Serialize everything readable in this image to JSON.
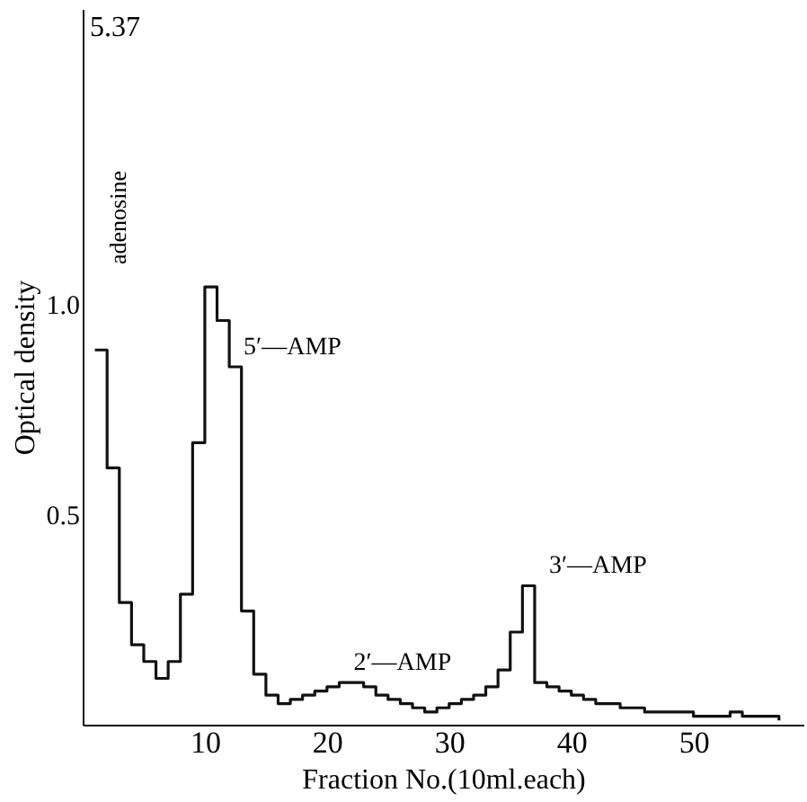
{
  "chart_data": {
    "type": "step",
    "xlabel": "Fraction No.(10ml.each)",
    "ylabel": "Optical density",
    "x": [
      1,
      2,
      3,
      4,
      5,
      6,
      7,
      8,
      9,
      10,
      11,
      12,
      13,
      14,
      15,
      16,
      17,
      18,
      19,
      20,
      21,
      22,
      23,
      24,
      25,
      26,
      27,
      28,
      29,
      30,
      31,
      32,
      33,
      34,
      35,
      36,
      37,
      38,
      39,
      40,
      41,
      42,
      43,
      44,
      45,
      46,
      47,
      48,
      49,
      50,
      51,
      52,
      53,
      54,
      55,
      56,
      57
    ],
    "series": [
      {
        "color": "#111111",
        "values": [
          0.89,
          0.61,
          0.29,
          0.19,
          0.15,
          0.11,
          0.15,
          0.31,
          0.67,
          1.04,
          0.96,
          0.85,
          0.27,
          0.12,
          0.07,
          0.05,
          0.06,
          0.07,
          0.08,
          0.09,
          0.1,
          0.1,
          0.09,
          0.07,
          0.06,
          0.05,
          0.04,
          0.03,
          0.04,
          0.05,
          0.06,
          0.07,
          0.09,
          0.13,
          0.22,
          0.33,
          0.1,
          0.09,
          0.08,
          0.07,
          0.06,
          0.05,
          0.05,
          0.04,
          0.04,
          0.03,
          0.03,
          0.03,
          0.03,
          0.02,
          0.02,
          0.02,
          0.03,
          0.02,
          0.02,
          0.02,
          0.01
        ]
      }
    ],
    "xlim": [
      0,
      59
    ],
    "ylim": [
      0,
      1.7
    ],
    "xticks": [
      10,
      20,
      30,
      40,
      50
    ],
    "yticks": [
      {
        "value": 0.5,
        "label": "0.5"
      },
      {
        "value": 1,
        "label": "1.0"
      }
    ],
    "annotations": [
      "adenosine",
      {
        "text": "5′—AMP",
        "x": 12,
        "y": 0.85
      },
      {
        "text": "2′—AMP",
        "x": 21,
        "y": 0.1
      },
      {
        "text": "3′—AMP",
        "x": 37,
        "y": 0.33
      },
      "5.37"
    ],
    "grid": false
  }
}
